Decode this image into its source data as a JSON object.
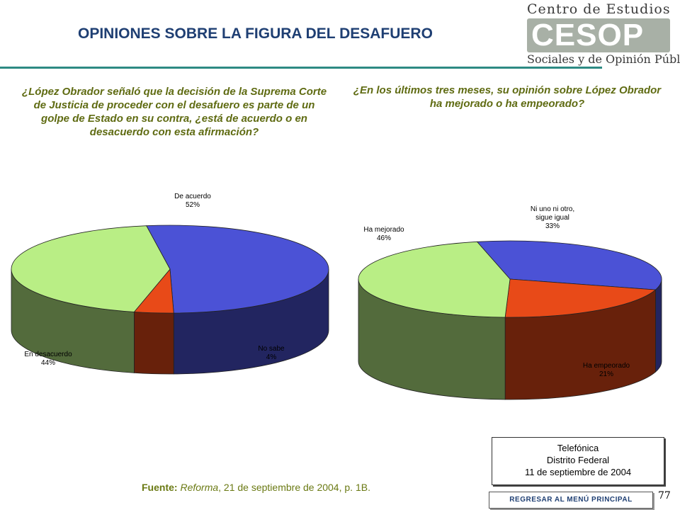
{
  "header": {
    "title": "OPINIONES SOBRE LA FIGURA DEL DESAFUERO",
    "logo_top": "Centro de Estudios",
    "logo_mark": "CESOP",
    "logo_bottom": "Sociales y de Opinión Pública"
  },
  "colors": {
    "title": "#1f3f73",
    "question": "#5f6b12",
    "rule": "#2d8a83",
    "blue": "#4b52d6",
    "red": "#e84a18",
    "green": "#b9ee85"
  },
  "chart_data": [
    {
      "type": "pie",
      "title": "¿López Obrador señaló que la decisión de la Suprema Corte de Justicia de proceder con el desafuero es parte de un golpe de Estado en su contra, ¿está de acuerdo o en desacuerdo con esta afirmación?",
      "slices": [
        {
          "name": "De acuerdo",
          "value": 52,
          "label": "52%",
          "color": "#4b52d6"
        },
        {
          "name": "No sabe",
          "value": 4,
          "label": "4%",
          "color": "#e84a18"
        },
        {
          "name": "En desacuerdo",
          "value": 44,
          "label": "44%",
          "color": "#b9ee85"
        }
      ]
    },
    {
      "type": "pie",
      "title": "¿En los últimos tres meses, su opinión sobre López Obrador ha mejorado o ha empeorado?",
      "slices": [
        {
          "name": "Ni uno ni otro, sigue igual",
          "value": 33,
          "label": "33%",
          "color": "#4b52d6"
        },
        {
          "name": "Ha empeorado",
          "value": 21,
          "label": "21%",
          "color": "#e84a18"
        },
        {
          "name": "Ha mejorado",
          "value": 46,
          "label": "46%",
          "color": "#b9ee85"
        }
      ]
    }
  ],
  "source": {
    "label": "Fuente:",
    "publication": "Reforma",
    "rest": ", 21 de septiembre de 2004, p. 1B."
  },
  "note": {
    "line1": "Telefónica",
    "line2": "Distrito Federal",
    "line3": "11 de septiembre de 2004"
  },
  "page_number": "77",
  "back_button_label": "REGRESAR AL MENÚ PRINCIPAL"
}
